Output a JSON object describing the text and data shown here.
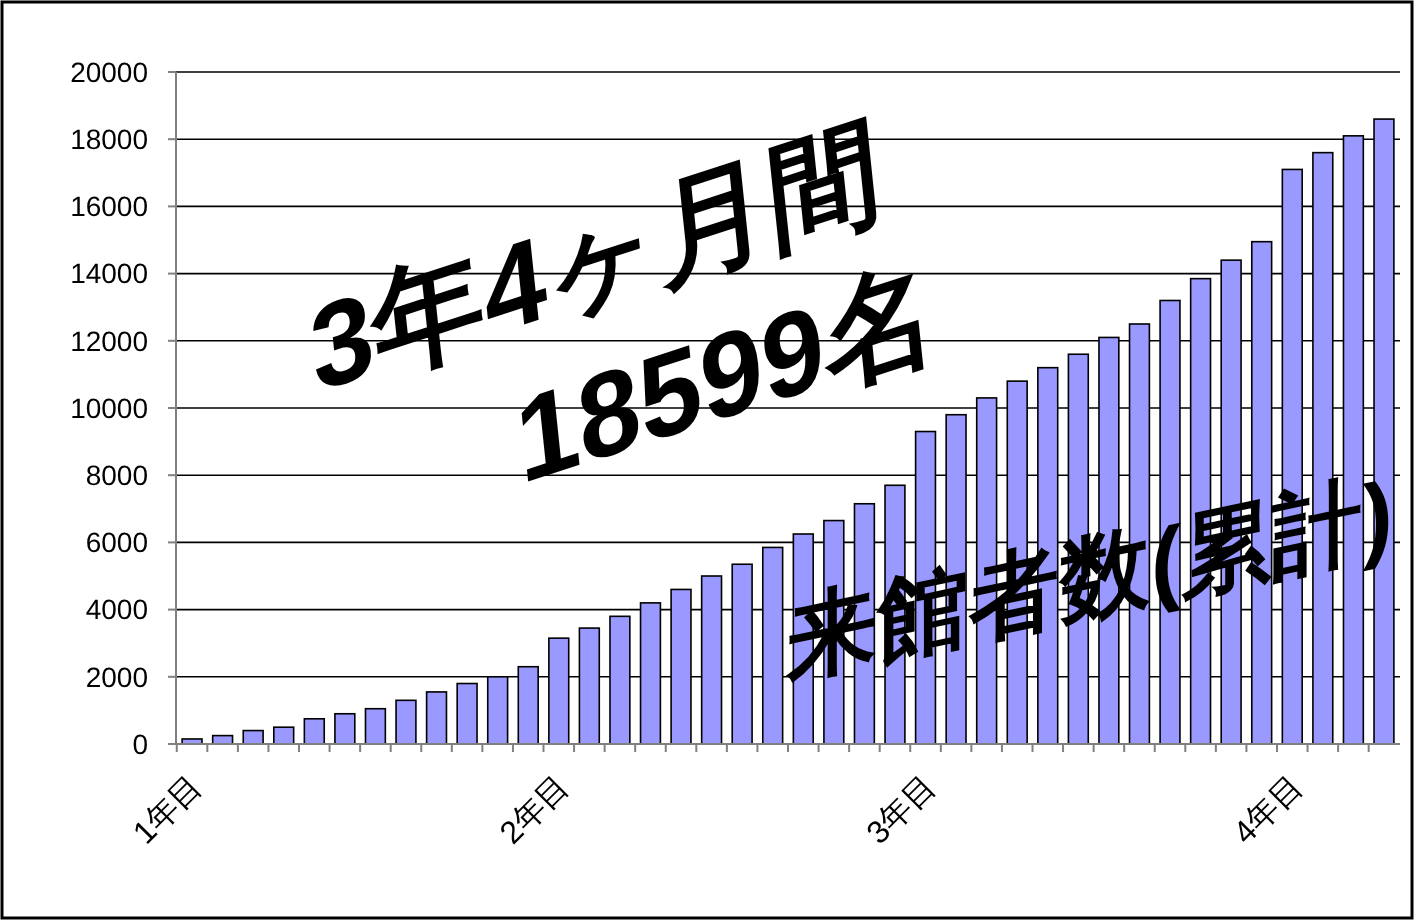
{
  "chart_data": {
    "type": "bar",
    "categories": [
      "1年目",
      null,
      null,
      null,
      null,
      null,
      null,
      null,
      null,
      null,
      null,
      null,
      "2年目",
      null,
      null,
      null,
      null,
      null,
      null,
      null,
      null,
      null,
      null,
      null,
      "3年目",
      null,
      null,
      null,
      null,
      null,
      null,
      null,
      null,
      null,
      null,
      null,
      "4年目",
      null,
      null,
      null
    ],
    "values": [
      150,
      250,
      400,
      500,
      750,
      900,
      1050,
      1300,
      1550,
      1800,
      2000,
      2300,
      3150,
      3450,
      3800,
      4200,
      4600,
      5000,
      5350,
      5850,
      6250,
      6650,
      7150,
      7700,
      9300,
      9800,
      10300,
      10800,
      11200,
      11600,
      12100,
      12500,
      13200,
      13850,
      14400,
      14950,
      17100,
      17600,
      18100,
      18599
    ],
    "color": "#9999ff",
    "ylim": [
      0,
      20000
    ],
    "yticks": [
      0,
      2000,
      4000,
      6000,
      8000,
      10000,
      12000,
      14000,
      16000,
      18000,
      20000
    ],
    "grid": "y",
    "annotations": [
      "3年4ヶ月間",
      "18599名",
      "来館者数(累計)"
    ]
  }
}
